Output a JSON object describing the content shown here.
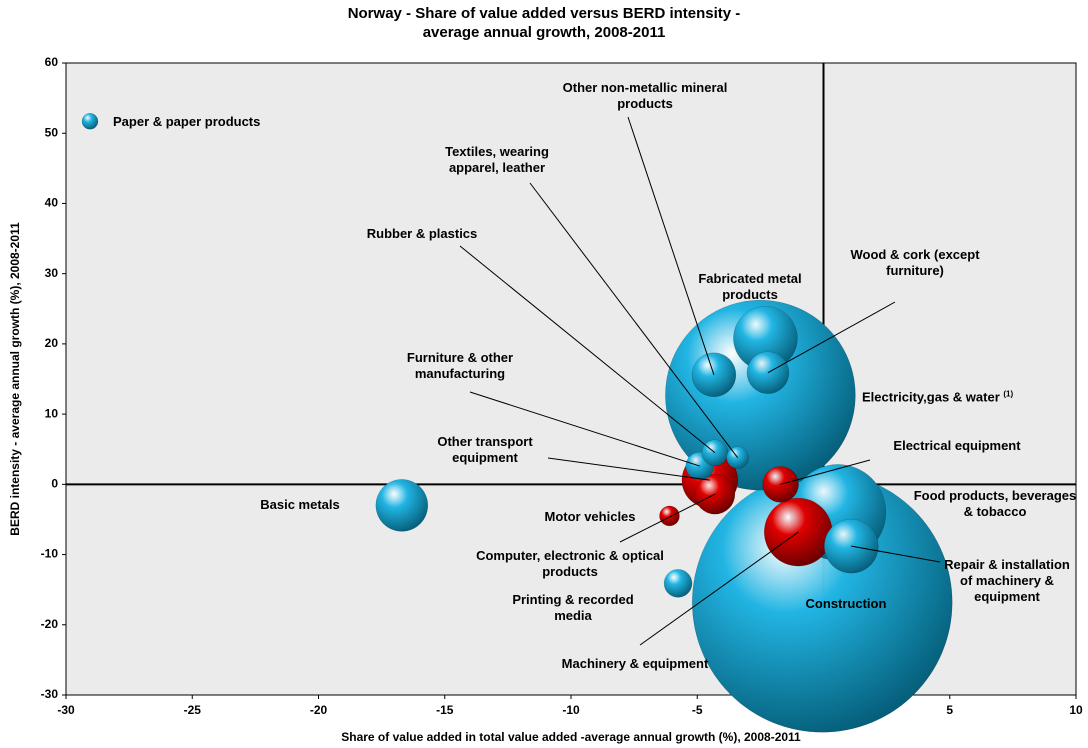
{
  "chart_data": {
    "type": "bubble",
    "title": [
      "Norway - Share of value added versus BERD intensity -",
      "average annual growth, 2008-2011"
    ],
    "x_label": "Share of value added in total value added -average annual growth (%), 2008-2011",
    "y_label": "BERD intensity - average annual growth (%), 2008-2011",
    "xlim": [
      -30,
      10
    ],
    "xticks": [
      -30,
      -25,
      -20,
      -15,
      -10,
      -5,
      0,
      5,
      10
    ],
    "ylim": [
      -30,
      60
    ],
    "yticks": [
      -30,
      -20,
      -10,
      0,
      10,
      20,
      30,
      40,
      50,
      60
    ],
    "points": [
      {
        "label": "Construction",
        "x": -0.05,
        "y": -16.8,
        "size": 130,
        "color": "#22b5e3"
      },
      {
        "label": "Electricity,gas & water",
        "note": "(1)",
        "x": -2.5,
        "y": 12.7,
        "size": 95,
        "color": "#22b5e3"
      },
      {
        "label": "Food products, beverages & tobacco",
        "x": 0.57,
        "y": -4.0,
        "size": 48,
        "color": "#22b5e3"
      },
      {
        "label": "Machinery & equipment",
        "x": -1.0,
        "y": -6.8,
        "size": 34,
        "color": "#e00000"
      },
      {
        "label": "Fabricated metal products",
        "x": -2.3,
        "y": 20.8,
        "size": 32,
        "color": "#22b5e3"
      },
      {
        "label": "Other transport equipment",
        "x": -4.5,
        "y": 0.6,
        "size": 28,
        "color": "#e00000"
      },
      {
        "label": "Repair & installation of machinery & equipment",
        "x": 1.1,
        "y": -8.8,
        "size": 27,
        "color": "#22b5e3"
      },
      {
        "label": "Basic metals",
        "x": -16.7,
        "y": -3.0,
        "size": 26,
        "color": "#22b5e3"
      },
      {
        "label": "Other non-metallic mineral products",
        "x": -4.34,
        "y": 15.6,
        "size": 22,
        "color": "#22b5e3"
      },
      {
        "label": "Wood & cork (except furniture)",
        "x": -2.2,
        "y": 15.9,
        "size": 21,
        "color": "#22b5e3"
      },
      {
        "label": "Computer, electronic & optical products",
        "x": -4.3,
        "y": -1.4,
        "size": 20,
        "color": "#e00000"
      },
      {
        "label": "Electrical equipment",
        "x": -1.7,
        "y": 0,
        "size": 18,
        "color": "#e00000"
      },
      {
        "label": "Furniture & other manufacturing",
        "x": -4.9,
        "y": 2.6,
        "size": 14,
        "color": "#22b5e3"
      },
      {
        "label": "Printing & recorded media",
        "x": -5.76,
        "y": -14.1,
        "size": 14,
        "color": "#22b5e3"
      },
      {
        "label": "Rubber & plastics",
        "x": -4.3,
        "y": 4.5,
        "size": 13,
        "color": "#22b5e3"
      },
      {
        "label": "Textiles, wearing apparel, leather",
        "x": -3.4,
        "y": 3.8,
        "size": 11,
        "color": "#22b5e3"
      },
      {
        "label": "Motor vehicles",
        "x": -6.1,
        "y": -4.5,
        "size": 10,
        "color": "#e00000"
      },
      {
        "label": "Paper & paper products",
        "x": -29.05,
        "y": 51.7,
        "size": 8,
        "color": "#22b5e3"
      }
    ]
  }
}
